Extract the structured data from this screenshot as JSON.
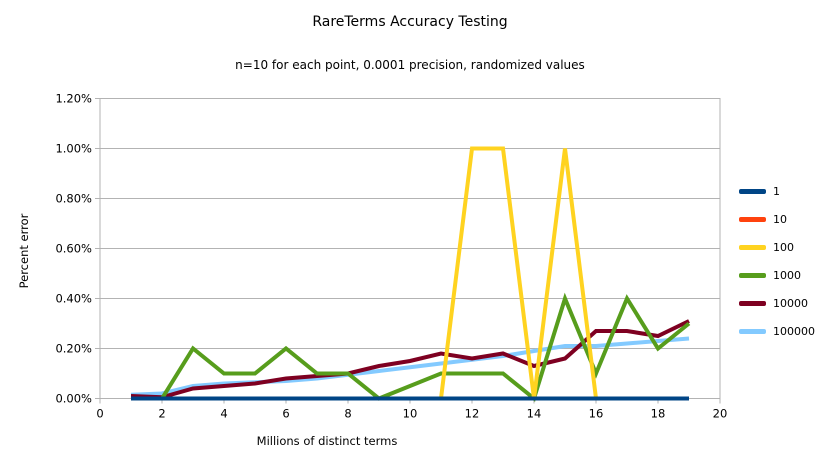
{
  "chart_data": {
    "type": "line",
    "title": "RareTerms Accuracy Testing",
    "subtitle": "n=10 for each point, 0.0001 precision, randomized values",
    "xlabel": "Millions of distinct terms",
    "ylabel": "Percent error",
    "xlim": [
      0,
      20
    ],
    "ylim_percent": [
      0,
      1.2
    ],
    "grid": true,
    "legend_position": "right",
    "x_tick_values": [
      0,
      2,
      4,
      6,
      8,
      10,
      12,
      14,
      16,
      18,
      20
    ],
    "x_tick_labels": [
      "0",
      "2",
      "4",
      "6",
      "8",
      "10",
      "12",
      "14",
      "16",
      "18",
      "20"
    ],
    "y_tick_values": [
      0,
      0.2,
      0.4,
      0.6,
      0.8,
      1.0,
      1.2
    ],
    "y_tick_labels": [
      "0.00%",
      "0.20%",
      "0.40%",
      "0.60%",
      "0.80%",
      "1.00%",
      "1.20%"
    ],
    "x": [
      1,
      2,
      3,
      4,
      5,
      6,
      7,
      8,
      9,
      10,
      11,
      12,
      13,
      14,
      15,
      16,
      17,
      18,
      19
    ],
    "series": [
      {
        "name": "1",
        "color": "#004586",
        "values_percent": [
          0,
          0,
          0,
          0,
          0,
          0,
          0,
          0,
          0,
          0,
          0,
          0,
          0,
          0,
          0,
          0,
          0,
          0,
          0
        ]
      },
      {
        "name": "10",
        "color": "#ff420e",
        "values_percent": [
          0,
          0,
          0,
          0,
          0,
          0,
          0,
          0,
          0,
          0,
          0,
          0,
          0,
          0,
          0,
          0,
          0,
          0,
          0
        ]
      },
      {
        "name": "100",
        "color": "#ffd320",
        "values_percent": [
          0,
          0,
          0,
          0,
          0,
          0,
          0,
          0,
          0,
          0,
          0,
          1.0,
          1.0,
          0,
          1.0,
          0,
          0,
          0,
          0
        ]
      },
      {
        "name": "1000",
        "color": "#579d1c",
        "values_percent": [
          0,
          0,
          0.2,
          0.1,
          0.1,
          0.2,
          0.1,
          0.1,
          0,
          0.05,
          0.1,
          0.1,
          0.1,
          0,
          0.4,
          0.1,
          0.4,
          0.2,
          0.3
        ]
      },
      {
        "name": "10000",
        "color": "#7e0021",
        "values_percent": [
          0.01,
          0.005,
          0.04,
          0.05,
          0.06,
          0.08,
          0.09,
          0.1,
          0.13,
          0.15,
          0.18,
          0.16,
          0.18,
          0.13,
          0.16,
          0.27,
          0.27,
          0.25,
          0.31
        ]
      },
      {
        "name": "100000",
        "color": "#83caff",
        "values_percent": [
          0.015,
          0.02,
          0.05,
          0.06,
          0.065,
          0.07,
          0.08,
          0.095,
          0.11,
          0.125,
          0.14,
          0.155,
          0.17,
          0.19,
          0.21,
          0.21,
          0.22,
          0.23,
          0.24
        ]
      }
    ],
    "render_note": "series drawn back-to-front: last legend entry drawn first, series '1' drawn last on top"
  }
}
